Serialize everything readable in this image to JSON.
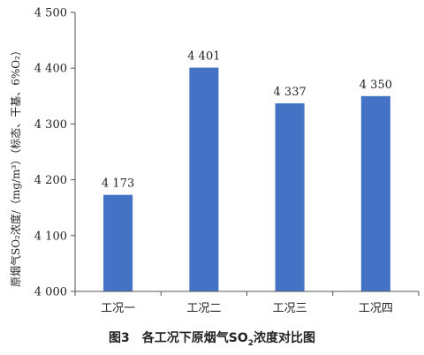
{
  "chart_data": {
    "type": "bar",
    "categories": [
      "工况一",
      "工况二",
      "工况三",
      "工况四"
    ],
    "values": [
      4173,
      4401,
      4337,
      4350
    ],
    "data_labels": [
      "4 173",
      "4 401",
      "4 337",
      "4 350"
    ],
    "ylabel": "原烟气SO₂浓度/（mg/m³）（标态、干基、6%O₂）",
    "ylim": [
      4000,
      4500
    ],
    "yticks": [
      4000,
      4100,
      4200,
      4300,
      4400,
      4500
    ],
    "ytick_labels": [
      "4 000",
      "4 100",
      "4 200",
      "4 300",
      "4 400",
      "4 500"
    ],
    "grid": false,
    "bar_color": "#4472c4"
  },
  "caption": {
    "number": "图3",
    "text_before": "各工况下原烟气SO",
    "sub": "2",
    "text_after": "浓度对比图"
  }
}
